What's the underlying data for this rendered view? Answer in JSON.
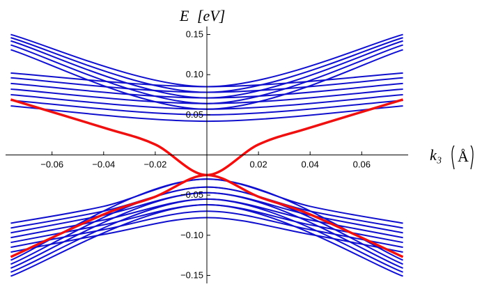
{
  "chart_data": {
    "type": "line",
    "title": "",
    "xlabel": "k₃",
    "xlabel_unit": "Å",
    "ylabel": "E",
    "ylabel_unit": "[eV]",
    "xlim": [
      -0.078,
      0.078
    ],
    "ylim": [
      -0.16,
      0.16
    ],
    "x_ticks": [
      -0.06,
      -0.04,
      -0.02,
      0.02,
      0.04,
      0.06
    ],
    "x_tick_labels": [
      "−0.06",
      "−0.04",
      "−0.02",
      "0.02",
      "0.04",
      "0.06"
    ],
    "y_ticks": [
      -0.15,
      -0.1,
      -0.05,
      0.05,
      0.1,
      0.15
    ],
    "y_tick_labels": [
      "−0.15",
      "−0.10",
      "−0.05",
      "0.05",
      "0.10",
      "0.15"
    ],
    "grid": false,
    "colors": {
      "bands": "#1010cc",
      "surface": "#ee1111"
    },
    "bulk_gap": 0.025,
    "series_groups": [
      {
        "kind": "flat-conduction",
        "color": "bands",
        "x": [
          -0.076,
          0,
          0.076
        ],
        "bands": [
          {
            "y": [
              0.102,
              0.085,
              0.102
            ]
          },
          {
            "y": [
              0.096,
              0.078,
              0.096
            ]
          },
          {
            "y": [
              0.089,
              0.071,
              0.089
            ]
          },
          {
            "y": [
              0.082,
              0.064,
              0.082
            ]
          },
          {
            "y": [
              0.075,
              0.057,
              0.075
            ]
          },
          {
            "y": [
              0.068,
              0.05,
              0.068
            ]
          },
          {
            "y": [
              0.061,
              0.042,
              0.061
            ]
          }
        ]
      },
      {
        "kind": "steep-conduction",
        "color": "bands",
        "x": [
          -0.076,
          0,
          0.076
        ],
        "bands": [
          {
            "y": [
              0.15,
              0.085,
              0.15
            ]
          },
          {
            "y": [
              0.146,
              0.078,
              0.146
            ]
          },
          {
            "y": [
              0.142,
              0.071,
              0.142
            ]
          },
          {
            "y": [
              0.137,
              0.064,
              0.137
            ]
          },
          {
            "y": [
              0.131,
              0.057,
              0.131
            ]
          }
        ]
      },
      {
        "kind": "flat-valence",
        "color": "bands",
        "x": [
          -0.076,
          -0.04,
          0,
          0.04,
          0.076
        ],
        "bands": [
          {
            "y": [
              -0.085,
              -0.064,
              -0.03,
              -0.064,
              -0.085
            ]
          },
          {
            "y": [
              -0.091,
              -0.07,
              -0.04,
              -0.07,
              -0.091
            ]
          },
          {
            "y": [
              -0.097,
              -0.075,
              -0.047,
              -0.075,
              -0.097
            ]
          },
          {
            "y": [
              -0.103,
              -0.081,
              -0.055,
              -0.081,
              -0.103
            ]
          },
          {
            "y": [
              -0.109,
              -0.087,
              -0.062,
              -0.087,
              -0.109
            ]
          },
          {
            "y": [
              -0.115,
              -0.093,
              -0.07,
              -0.093,
              -0.115
            ]
          },
          {
            "y": [
              -0.121,
              -0.099,
              -0.078,
              -0.099,
              -0.121
            ]
          }
        ]
      },
      {
        "kind": "steep-valence",
        "color": "bands",
        "x": [
          -0.076,
          0,
          0.076
        ],
        "bands": [
          {
            "y": [
              -0.131,
              -0.03,
              -0.131
            ]
          },
          {
            "y": [
              -0.136,
              -0.04,
              -0.136
            ]
          },
          {
            "y": [
              -0.141,
              -0.047,
              -0.141
            ]
          },
          {
            "y": [
              -0.146,
              -0.055,
              -0.146
            ]
          },
          {
            "y": [
              -0.151,
              -0.062,
              -0.151
            ]
          }
        ]
      },
      {
        "kind": "surface-states",
        "color": "surface",
        "x": [
          -0.076,
          -0.04,
          -0.02,
          0,
          0.02,
          0.04,
          0.076
        ],
        "bands": [
          {
            "y": [
              0.069,
              0.034,
              0.013,
              -0.025,
              0.013,
              0.034,
              0.069
            ]
          },
          {
            "y": [
              -0.127,
              -0.074,
              -0.052,
              -0.025,
              -0.052,
              -0.074,
              -0.127
            ]
          }
        ]
      }
    ]
  }
}
